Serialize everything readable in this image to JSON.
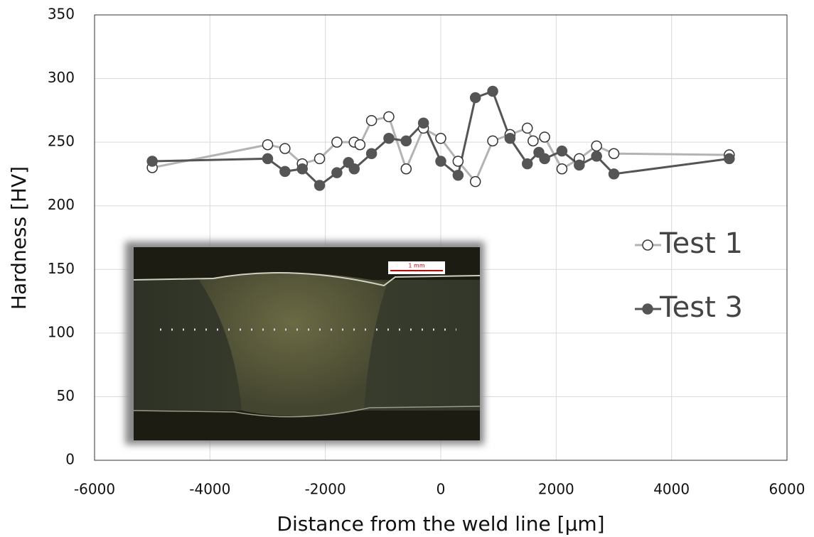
{
  "chart_data": {
    "type": "line",
    "xlabel": "Distance from the weld line [µm]",
    "ylabel": "Hardness [HV]",
    "xlim": [
      -6000,
      6000
    ],
    "xticks": [
      -6000,
      -4000,
      -2000,
      0,
      2000,
      4000,
      6000
    ],
    "ylim": [
      0,
      350
    ],
    "yticks": [
      0,
      50,
      100,
      150,
      200,
      250,
      300,
      350
    ],
    "grid": true,
    "legend": "right",
    "annotations": [
      "1 mm"
    ],
    "series": [
      {
        "name": "Test 1",
        "color": "#b3b3b3",
        "marker": "open",
        "x": [
          -5000,
          -3000,
          -2700,
          -2400,
          -2100,
          -1800,
          -1500,
          -1400,
          -1200,
          -900,
          -600,
          -300,
          0,
          300,
          600,
          900,
          1200,
          1500,
          1600,
          1800,
          2100,
          2400,
          2700,
          3000,
          5000
        ],
        "values": [
          230,
          248,
          245,
          233,
          237,
          250,
          250,
          248,
          267,
          270,
          229,
          261,
          253,
          235,
          219,
          251,
          256,
          261,
          251,
          254,
          229,
          237,
          247,
          241,
          240
        ]
      },
      {
        "name": "Test 3",
        "color": "#555555",
        "marker": "filled",
        "x": [
          -5000,
          -3000,
          -2700,
          -2400,
          -2100,
          -1800,
          -1600,
          -1500,
          -1200,
          -900,
          -600,
          -300,
          0,
          300,
          600,
          900,
          1200,
          1500,
          1700,
          1800,
          2100,
          2400,
          2700,
          3000,
          5000
        ],
        "values": [
          235,
          237,
          227,
          229,
          216,
          226,
          234,
          229,
          241,
          253,
          251,
          265,
          235,
          224,
          285,
          290,
          253,
          233,
          242,
          237,
          243,
          232,
          239,
          225,
          237
        ]
      }
    ]
  }
}
